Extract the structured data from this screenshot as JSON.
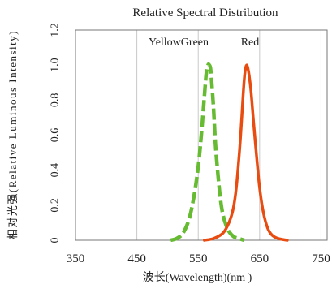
{
  "chart_data": {
    "type": "line",
    "title": "Relative Spectral Distribution",
    "xlabel": "波长(Wavelength)(nm )",
    "ylabel": "相对光强(Relative Luminous Intensity)",
    "xlim": [
      350,
      760
    ],
    "ylim": [
      0,
      1.2
    ],
    "xticks": [
      350,
      450,
      550,
      650,
      750
    ],
    "xtick_labels": [
      "350",
      "450",
      "550",
      "650",
      "750"
    ],
    "yticks": [
      0,
      0.2,
      0.4,
      0.6,
      0.8,
      1.0,
      1.2
    ],
    "ytick_labels": [
      "0",
      "0.2",
      "0.4",
      "0.6",
      "0.8",
      "1.0",
      "1.2"
    ],
    "grid": "vertical",
    "series": [
      {
        "name": "YellowGreen",
        "color": "#66bb33",
        "dash": "dashed",
        "x": [
          505,
          515,
          525,
          535,
          543,
          550,
          555,
          560,
          563,
          566,
          568,
          570,
          572,
          575,
          578,
          582,
          586,
          590,
          595,
          600,
          608,
          616,
          625
        ],
        "y": [
          0.0,
          0.01,
          0.04,
          0.12,
          0.25,
          0.42,
          0.6,
          0.82,
          0.95,
          1.0,
          1.0,
          0.98,
          0.9,
          0.75,
          0.55,
          0.38,
          0.24,
          0.15,
          0.09,
          0.05,
          0.02,
          0.01,
          0.0
        ]
      },
      {
        "name": "Red",
        "color": "#e84c10",
        "dash": "solid",
        "x": [
          560,
          575,
          590,
          600,
          607,
          612,
          617,
          620,
          623,
          625,
          627,
          629,
          631,
          633,
          636,
          640,
          645,
          650,
          656,
          663,
          670,
          680,
          695
        ],
        "y": [
          0.0,
          0.01,
          0.04,
          0.1,
          0.18,
          0.3,
          0.5,
          0.65,
          0.82,
          0.92,
          0.98,
          1.0,
          0.98,
          0.94,
          0.85,
          0.68,
          0.48,
          0.3,
          0.16,
          0.07,
          0.03,
          0.01,
          0.0
        ]
      }
    ]
  }
}
